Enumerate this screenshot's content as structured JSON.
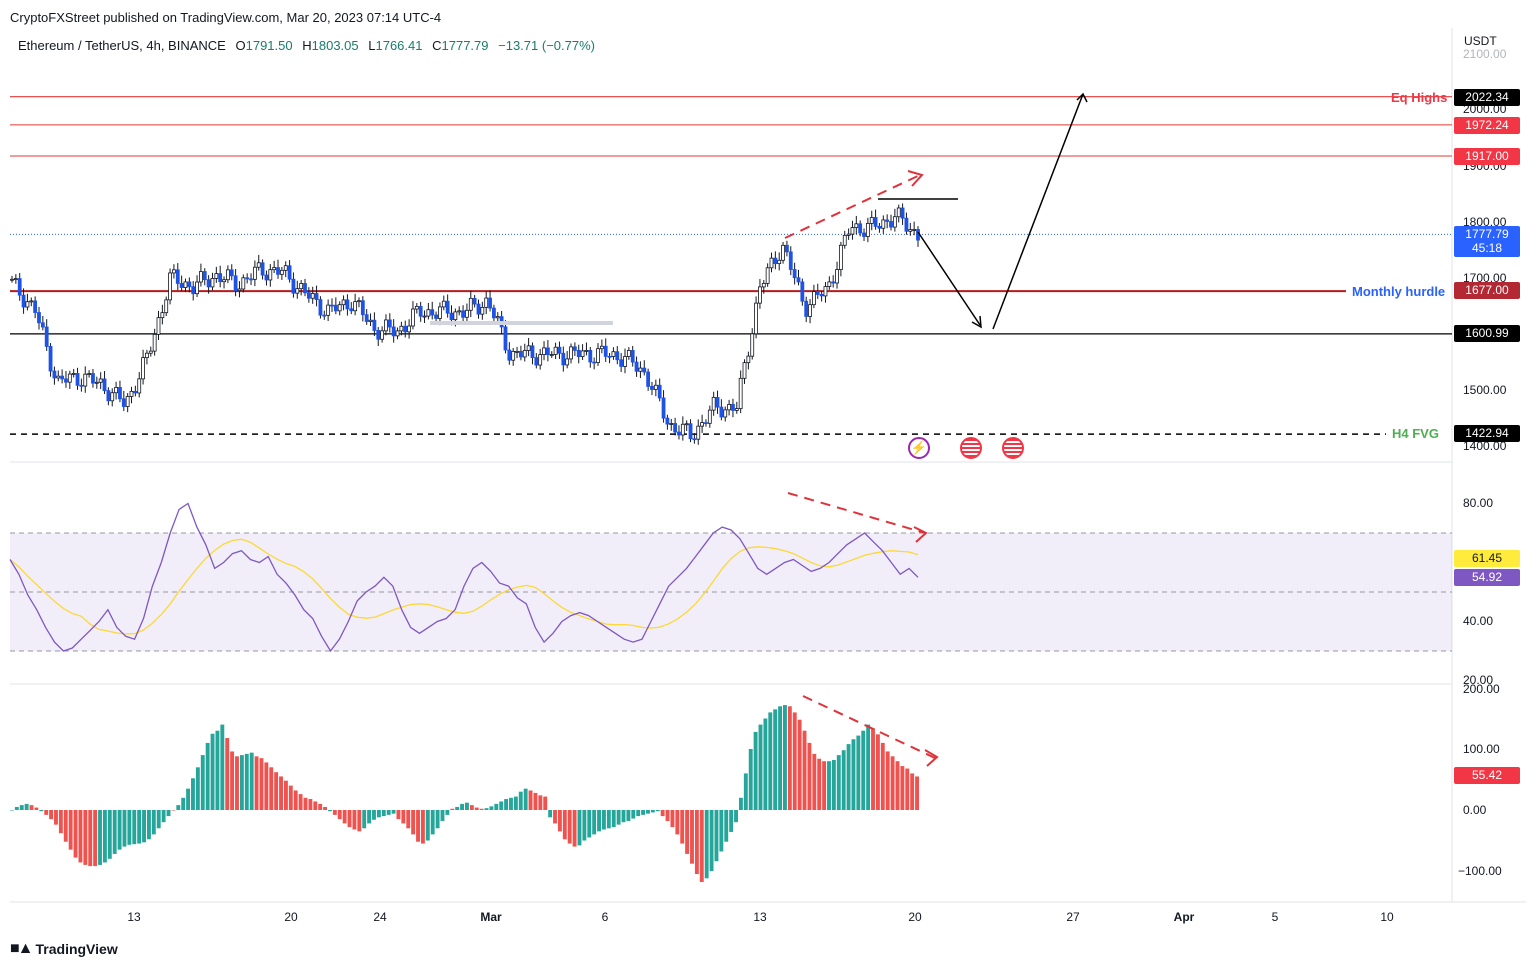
{
  "header": {
    "publisher": "CryptoFXStreet published on TradingView.com, Mar 20, 2023 07:14 UTC-4",
    "symbol": "Ethereum / TetherUS, 4h, BINANCE",
    "open_label": "O",
    "open": "1791.50",
    "high_label": "H",
    "high": "1803.05",
    "low_label": "L",
    "low": "1766.41",
    "close_label": "C",
    "close": "1777.79",
    "change": "−13.71 (−0.77%)",
    "currency": "USDT"
  },
  "brand": {
    "name": "TradingView",
    "logo": "tradingview-logo"
  },
  "colors": {
    "up": "#26a69a",
    "down": "#1e53e5",
    "red_line": "#e53935",
    "monthly": "#b71c1c",
    "rsi": "#7e57c2",
    "rsi_ma": "#fdd835",
    "hist_up": "#26a69a",
    "hist_down": "#ef5350",
    "annotation": "#e0323a"
  },
  "chart_data": [
    {
      "type": "candlestick",
      "title": "Ethereum / TetherUS, 4h, BINANCE",
      "ylim": [
        1375,
        2110
      ],
      "y_ticks": [
        "2100.00",
        "2000.00",
        "1900.00",
        "1800.00",
        "1700.00",
        "1500.00",
        "1400.00"
      ],
      "x_ticks": [
        "13",
        "20",
        "24",
        "Mar",
        "6",
        "13",
        "20",
        "27",
        "Apr",
        "5",
        "10"
      ],
      "ohlc_close_path": [
        [
          "Mar 7",
          1680,
          1690
        ],
        [
          "Feb 9",
          1685,
          1645
        ],
        [
          "Feb 10",
          1545,
          1515
        ],
        [
          "Feb 11",
          1520,
          1525
        ],
        [
          "Feb 12",
          1520,
          1510
        ],
        [
          "Feb 13",
          1490,
          1475
        ],
        [
          "Feb 14",
          1520,
          1560
        ],
        [
          "Feb 15",
          1650,
          1700
        ],
        [
          "Feb 16",
          1720,
          1685
        ],
        [
          "Feb 17",
          1690,
          1705
        ],
        [
          "Feb 18",
          1700,
          1690
        ],
        [
          "Feb 19",
          1710,
          1715
        ],
        [
          "Feb 20",
          1700,
          1710
        ],
        [
          "Feb 21",
          1690,
          1670
        ],
        [
          "Feb 22",
          1660,
          1640
        ],
        [
          "Feb 23",
          1650,
          1660
        ],
        [
          "Feb 24",
          1640,
          1610
        ],
        [
          "Feb 25",
          1600,
          1605
        ],
        [
          "Feb 26",
          1620,
          1640
        ],
        [
          "Feb 27",
          1640,
          1640
        ],
        [
          "Feb 28",
          1650,
          1640
        ],
        [
          "Mar 1",
          1660,
          1660
        ],
        [
          "Mar 2",
          1640,
          1565
        ],
        [
          "Mar 3",
          1565,
          1565
        ],
        [
          "Mar 4",
          1560,
          1565
        ],
        [
          "Mar 5",
          1565,
          1565
        ],
        [
          "Mar 6",
          1565,
          1565
        ],
        [
          "Mar 7",
          1560,
          1560
        ],
        [
          "Mar 8",
          1550,
          1530
        ],
        [
          "Mar 9",
          1520,
          1440
        ],
        [
          "Mar 10",
          1430,
          1420
        ],
        [
          "Mar 11",
          1440,
          1470
        ],
        [
          "Mar 12",
          1470,
          1470
        ],
        [
          "Mar 13",
          1600,
          1680
        ],
        [
          "Mar 14",
          1690,
          1760
        ],
        [
          "Mar 15",
          1700,
          1650
        ],
        [
          "Mar 16",
          1660,
          1680
        ],
        [
          "Mar 17",
          1740,
          1790
        ],
        [
          "Mar 18",
          1810,
          1790
        ],
        [
          "Mar 19",
          1790,
          1810
        ],
        [
          "Mar 20",
          1791.5,
          1777.79
        ]
      ],
      "levels": [
        {
          "label": "Eq Highs",
          "value": "2022.34",
          "color": "#e53935"
        },
        {
          "label": "",
          "value": "1972.24",
          "color": "#e53935"
        },
        {
          "label": "",
          "value": "1917.00",
          "color": "#e53935"
        },
        {
          "label": "",
          "value": "1777.79",
          "color": "#2962ff",
          "countdown": "45:18"
        },
        {
          "label": "Monthly hurdle",
          "value": "1677.00",
          "color": "#b71c1c"
        },
        {
          "label": "",
          "value": "1600.99",
          "color": "#000000"
        },
        {
          "label": "H4 FVG",
          "value": "1422.94",
          "color": "#000000"
        }
      ],
      "event_icons": [
        "lightning-icon",
        "us-flag-icon",
        "us-flag-icon"
      ]
    },
    {
      "type": "line",
      "title": "",
      "ylim": [
        20,
        85
      ],
      "y_ticks": [
        "80.00",
        "40.00",
        "20.00"
      ],
      "bands": [
        30,
        50,
        70
      ],
      "series": [
        {
          "name": "",
          "last": "54.92",
          "color": "#7e57c2"
        },
        {
          "name": "",
          "last": "61.45",
          "color": "#fdd835"
        }
      ],
      "values": [
        61,
        56,
        49,
        44,
        38,
        33,
        30,
        31,
        34,
        37,
        40,
        44,
        38,
        35,
        34,
        41,
        52,
        60,
        70,
        78,
        80,
        72,
        66,
        58,
        60,
        63,
        64,
        61,
        60,
        62,
        56,
        53,
        49,
        44,
        41,
        35,
        30,
        34,
        40,
        47,
        50,
        52,
        55,
        52,
        44,
        38,
        36,
        38,
        40,
        41,
        44,
        52,
        58,
        60,
        57,
        53,
        52,
        48,
        46,
        38,
        33,
        36,
        40,
        42,
        43,
        42,
        40,
        38,
        36,
        34,
        33,
        34,
        40,
        46,
        52,
        55,
        58,
        62,
        66,
        70,
        72,
        71,
        68,
        63,
        58,
        56,
        58,
        60,
        61,
        59,
        57,
        58,
        60,
        63,
        66,
        68,
        70,
        67,
        64,
        60,
        56,
        58,
        55
      ]
    },
    {
      "type": "bar",
      "title": "",
      "ylim": [
        -125,
        200
      ],
      "y_ticks": [
        "200.00",
        "100.00",
        "0.00",
        "−100.00"
      ],
      "series": [
        {
          "name": "",
          "last": "55.42"
        }
      ],
      "values": [
        0,
        5,
        8,
        10,
        8,
        4,
        -2,
        -8,
        -15,
        -24,
        -38,
        -52,
        -65,
        -78,
        -86,
        -90,
        -92,
        -92,
        -90,
        -86,
        -80,
        -72,
        -65,
        -60,
        -57,
        -56,
        -55,
        -53,
        -48,
        -40,
        -30,
        -20,
        -10,
        0,
        8,
        20,
        35,
        52,
        70,
        90,
        110,
        125,
        130,
        140,
        118,
        96,
        88,
        90,
        92,
        94,
        88,
        85,
        78,
        70,
        62,
        55,
        48,
        40,
        32,
        26,
        20,
        18,
        14,
        10,
        5,
        -2,
        -8,
        -15,
        -22,
        -28,
        -32,
        -35,
        -30,
        -22,
        -16,
        -12,
        -10,
        -8,
        -6,
        -15,
        -22,
        -30,
        -40,
        -52,
        -55,
        -50,
        -40,
        -30,
        -18,
        -8,
        2,
        5,
        10,
        12,
        8,
        4,
        2,
        3,
        6,
        10,
        14,
        18,
        20,
        22,
        30,
        35,
        32,
        28,
        24,
        22,
        -12,
        -22,
        -35,
        -48,
        -55,
        -60,
        -58,
        -50,
        -45,
        -40,
        -35,
        -32,
        -30,
        -28,
        -24,
        -20,
        -18,
        -14,
        -10,
        -8,
        -6,
        -4,
        -2,
        -10,
        -18,
        -28,
        -40,
        -55,
        -72,
        -88,
        -105,
        -118,
        -112,
        -100,
        -84,
        -68,
        -52,
        -36,
        -20,
        20,
        60,
        100,
        128,
        140,
        150,
        160,
        165,
        170,
        172,
        170,
        160,
        148,
        130,
        110,
        92,
        84,
        80,
        80,
        82,
        90,
        98,
        108,
        116,
        122,
        130,
        140,
        134,
        124,
        110,
        96,
        88,
        80,
        72,
        68,
        60,
        55
      ]
    }
  ]
}
